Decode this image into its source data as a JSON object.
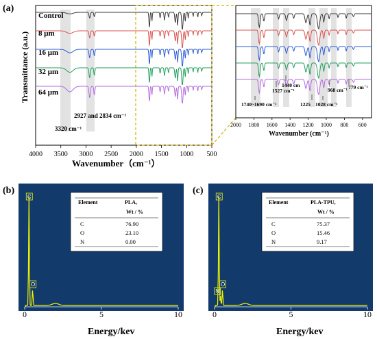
{
  "panel_a": {
    "label": "(a)",
    "ylabel": "Transmittance (a.u.)",
    "xlabel": "Wavenumber（cm⁻¹）",
    "inset_xlabel": "Wavenumber (cm⁻¹)"
  },
  "panel_b": {
    "label": "(b)"
  },
  "panel_c": {
    "label": "(c)"
  },
  "chart_data": [
    {
      "id": "ftir-main",
      "type": "line",
      "xlabel": "Wavenumber（cm⁻¹）",
      "ylabel": "Transmittance (a.u.)",
      "xlim": [
        4000,
        500
      ],
      "xticks": [
        4000,
        3500,
        3000,
        2500,
        2000,
        1500,
        1000,
        500
      ],
      "series": [
        {
          "name": "Control",
          "color": "#3a3a3a",
          "offset": 0
        },
        {
          "name": "8 μm",
          "color": "#d9534f",
          "offset": 1
        },
        {
          "name": "16 μm",
          "color": "#2a5bd7",
          "offset": 2
        },
        {
          "name": "32 μm",
          "color": "#1f9e5a",
          "offset": 3
        },
        {
          "name": "64 μm",
          "color": "#b26be0",
          "offset": 4
        }
      ],
      "annotations": [
        "3320 cm⁻¹",
        "2927 and 2834 cm⁻¹"
      ]
    },
    {
      "id": "ftir-inset",
      "type": "line",
      "xlabel": "Wavenumber (cm⁻¹)",
      "xlim": [
        2000,
        500
      ],
      "xticks": [
        2000,
        1800,
        1600,
        1400,
        1200,
        1000,
        800,
        600
      ],
      "annotations": [
        "1740~1690 cm⁻¹",
        "1527 cm⁻¹",
        "1440 cm",
        "1225",
        "1028 cm⁻¹",
        "968 cm⁻¹",
        "779 cm⁻¹"
      ]
    },
    {
      "id": "eds-pla",
      "type": "line",
      "xlabel": "Energy/kev",
      "xlim": [
        0,
        10
      ],
      "xticks": [
        0,
        5,
        10
      ],
      "peaks": [
        {
          "element": "C",
          "energy": 0.28
        },
        {
          "element": "O",
          "energy": 0.52
        }
      ],
      "table": {
        "headers": [
          "Element",
          "PLA,",
          "Wt / %"
        ],
        "rows": [
          [
            "C",
            "76.90"
          ],
          [
            "O",
            "23.10"
          ],
          [
            "N",
            "0.00"
          ]
        ]
      }
    },
    {
      "id": "eds-pla-tpu",
      "type": "line",
      "xlabel": "Energy/kev",
      "xlim": [
        0,
        10
      ],
      "xticks": [
        0,
        5,
        10
      ],
      "peaks": [
        {
          "element": "C",
          "energy": 0.28
        },
        {
          "element": "N",
          "energy": 0.39
        },
        {
          "element": "O",
          "energy": 0.52
        }
      ],
      "table": {
        "headers": [
          "Element",
          "PLA-TPU,",
          "Wt / %"
        ],
        "rows": [
          [
            "C",
            "75.37"
          ],
          [
            "O",
            "15.46"
          ],
          [
            "N",
            "9.17"
          ]
        ]
      }
    }
  ]
}
